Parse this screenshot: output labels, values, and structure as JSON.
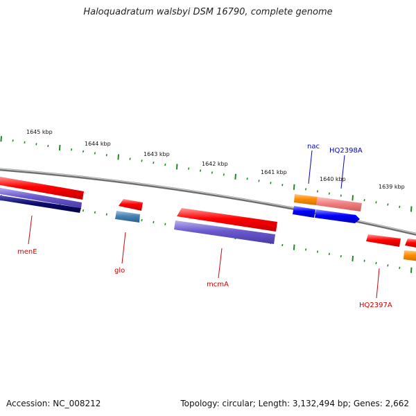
{
  "title": "Haloquadratum walsbyi DSM 16790, complete genome",
  "footer": {
    "accession": "Accession: NC_008212",
    "summary": "Topology: circular; Length: 3,132,494 bp; Genes: 2,662"
  },
  "colors": {
    "backbone": "#8a8a8a",
    "tick": "#1f8a1f",
    "label_red": "#cc0000",
    "label_blue": "#0000cc",
    "gene_red": "#ff0000",
    "gene_purple": "#6a5acd",
    "gene_navy": "#0b0b6b",
    "gene_blue": "#0000ff",
    "gene_orange": "#ff8c00",
    "gene_steel": "#4682b4",
    "gene_pink": "#f08080"
  },
  "ticks": [
    {
      "label": "1645 kbp"
    },
    {
      "label": "1644 kbp"
    },
    {
      "label": "1643 kbp"
    },
    {
      "label": "1642 kbp"
    },
    {
      "label": "1641 kbp"
    },
    {
      "label": "1640 kbp"
    },
    {
      "label": "1639 kbp"
    }
  ],
  "gene_labels": [
    {
      "text": "menE",
      "color": "red"
    },
    {
      "text": "glo",
      "color": "red"
    },
    {
      "text": "mcmA",
      "color": "red"
    },
    {
      "text": "HQ2397A",
      "color": "red"
    },
    {
      "text": "nac",
      "color": "blue"
    },
    {
      "text": "HQ2398A",
      "color": "blue"
    }
  ]
}
